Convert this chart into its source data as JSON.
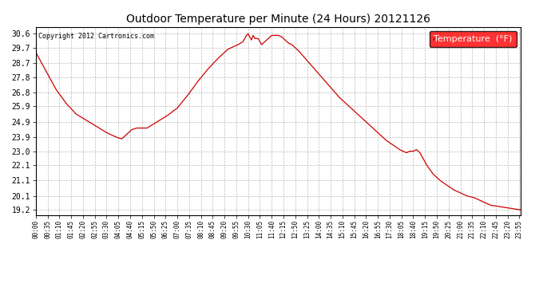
{
  "title": "Outdoor Temperature per Minute (24 Hours) 20121126",
  "copyright_text": "Copyright 2012 Cartronics.com",
  "legend_label": "Temperature  (°F)",
  "background_color": "#ffffff",
  "plot_bg_color": "#ffffff",
  "line_color": "#cc0000",
  "grid_color": "#bbbbbb",
  "yticks": [
    19.2,
    20.1,
    21.1,
    22.1,
    23.0,
    23.9,
    24.9,
    25.9,
    26.8,
    27.8,
    28.7,
    29.7,
    30.6
  ],
  "ylim": [
    18.85,
    31.05
  ],
  "total_minutes": 1440,
  "label_interval_min": 35,
  "key_points": [
    [
      0,
      29.4
    ],
    [
      30,
      28.2
    ],
    [
      60,
      27.0
    ],
    [
      90,
      26.1
    ],
    [
      120,
      25.4
    ],
    [
      150,
      25.0
    ],
    [
      180,
      24.6
    ],
    [
      210,
      24.2
    ],
    [
      240,
      23.9
    ],
    [
      255,
      23.8
    ],
    [
      270,
      24.1
    ],
    [
      285,
      24.4
    ],
    [
      300,
      24.5
    ],
    [
      315,
      24.5
    ],
    [
      330,
      24.5
    ],
    [
      360,
      24.9
    ],
    [
      390,
      25.3
    ],
    [
      420,
      25.8
    ],
    [
      450,
      26.6
    ],
    [
      480,
      27.5
    ],
    [
      510,
      28.3
    ],
    [
      540,
      29.0
    ],
    [
      570,
      29.6
    ],
    [
      600,
      29.9
    ],
    [
      615,
      30.1
    ],
    [
      625,
      30.5
    ],
    [
      630,
      30.6
    ],
    [
      635,
      30.4
    ],
    [
      640,
      30.2
    ],
    [
      645,
      30.5
    ],
    [
      650,
      30.3
    ],
    [
      660,
      30.3
    ],
    [
      665,
      30.1
    ],
    [
      670,
      29.9
    ],
    [
      680,
      30.1
    ],
    [
      690,
      30.3
    ],
    [
      700,
      30.5
    ],
    [
      710,
      30.5
    ],
    [
      720,
      30.5
    ],
    [
      730,
      30.4
    ],
    [
      740,
      30.2
    ],
    [
      750,
      30.0
    ],
    [
      760,
      29.9
    ],
    [
      780,
      29.5
    ],
    [
      800,
      29.0
    ],
    [
      820,
      28.5
    ],
    [
      840,
      28.0
    ],
    [
      860,
      27.5
    ],
    [
      880,
      27.0
    ],
    [
      900,
      26.5
    ],
    [
      920,
      26.1
    ],
    [
      940,
      25.7
    ],
    [
      960,
      25.3
    ],
    [
      980,
      24.9
    ],
    [
      1000,
      24.5
    ],
    [
      1020,
      24.1
    ],
    [
      1040,
      23.7
    ],
    [
      1060,
      23.4
    ],
    [
      1080,
      23.1
    ],
    [
      1100,
      22.9
    ],
    [
      1110,
      23.0
    ],
    [
      1120,
      23.0
    ],
    [
      1130,
      23.1
    ],
    [
      1140,
      22.9
    ],
    [
      1150,
      22.5
    ],
    [
      1160,
      22.1
    ],
    [
      1180,
      21.5
    ],
    [
      1200,
      21.1
    ],
    [
      1220,
      20.8
    ],
    [
      1240,
      20.5
    ],
    [
      1260,
      20.3
    ],
    [
      1280,
      20.1
    ],
    [
      1300,
      20.0
    ],
    [
      1320,
      19.8
    ],
    [
      1350,
      19.5
    ],
    [
      1380,
      19.4
    ],
    [
      1410,
      19.3
    ],
    [
      1439,
      19.2
    ]
  ]
}
